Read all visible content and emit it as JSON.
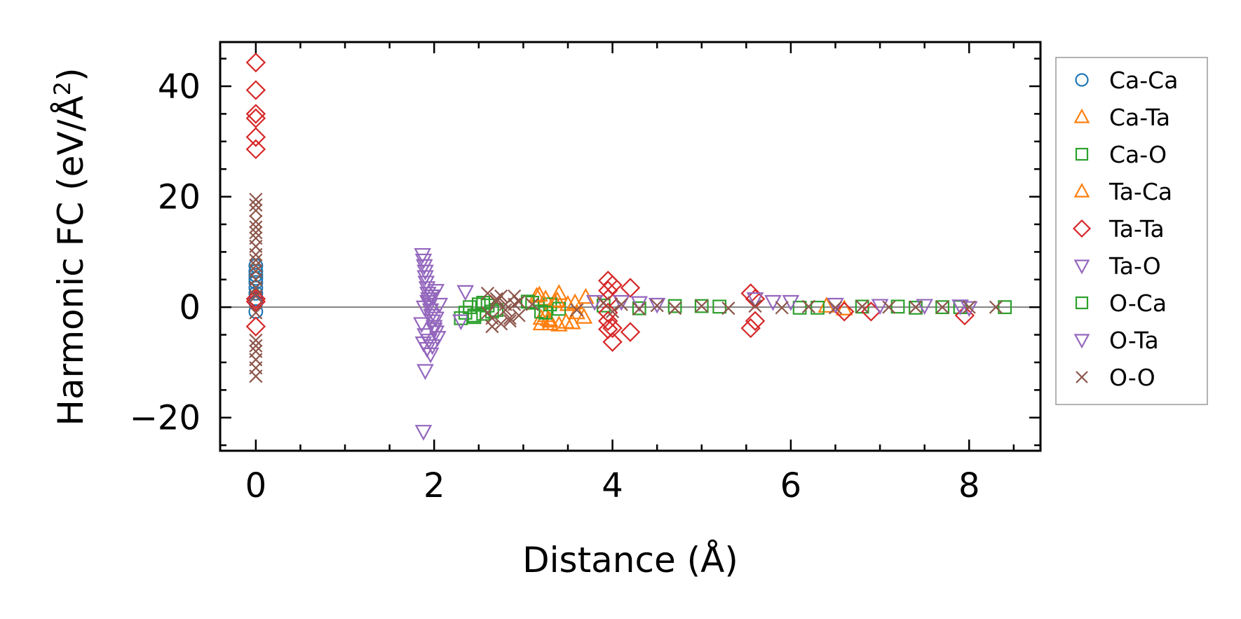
{
  "chart_data": {
    "type": "scatter",
    "title": "",
    "xlabel": "Distance (Å)",
    "ylabel_main": "Harmonic FC (eV/Å",
    "ylabel_sup": "2",
    "ylabel_close": ")",
    "xlim": [
      -0.4,
      8.8
    ],
    "ylim": [
      -26,
      48
    ],
    "xticks": [
      0,
      2,
      4,
      6,
      8
    ],
    "xtick_labels": [
      "0",
      "2",
      "4",
      "6",
      "8"
    ],
    "yticks": [
      -20,
      0,
      20,
      40
    ],
    "ytick_labels": [
      "−20",
      "0",
      "20",
      "40"
    ],
    "x_minor_step": 0.5,
    "y_minor_step": 5,
    "zero_line": true,
    "grid": false,
    "legend_position": "outside-right",
    "series": [
      {
        "name": "Ca-Ca",
        "marker": "circle",
        "color": "#1f77b4",
        "x": [
          0,
          0,
          0,
          0,
          0,
          0,
          0,
          0,
          0,
          0
        ],
        "y": [
          7.5,
          6.5,
          5.8,
          5.2,
          4.5,
          3.5,
          2.5,
          1.5,
          0.8,
          -0.8
        ]
      },
      {
        "name": "Ca-Ta",
        "marker": "triangle-up",
        "color": "#ff7f0e",
        "x": [
          3.15,
          3.2,
          3.25,
          3.3,
          3.35,
          3.4,
          3.5,
          3.6,
          3.2,
          3.3,
          3.4,
          3.55,
          3.7,
          3.25,
          6.4,
          6.6
        ],
        "y": [
          2,
          -3,
          1.5,
          -2.5,
          1,
          -3.2,
          0.5,
          -1,
          -2,
          -3,
          2.5,
          -2.8,
          1.8,
          -1.5,
          0.2,
          -0.3
        ]
      },
      {
        "name": "Ca-O",
        "marker": "square",
        "color": "#2ca02c",
        "x": [
          2.3,
          2.35,
          2.4,
          2.45,
          2.5,
          2.55,
          2.6,
          2.7,
          3.1,
          3.2,
          3.3,
          3.4,
          3.9,
          4.3,
          4.7,
          5.2,
          6.1,
          6.8,
          7.4,
          7.9,
          8.4
        ],
        "y": [
          -2,
          -1,
          0,
          -1.5,
          0.5,
          -1.2,
          0.3,
          -0.5,
          0.8,
          -0.8,
          0.5,
          -0.3,
          0.3,
          -0.2,
          0.2,
          0.1,
          -0.1,
          0.1,
          -0.1,
          0,
          0
        ]
      },
      {
        "name": "Ta-Ca",
        "marker": "triangle-up",
        "color": "#ff7f0e",
        "x": [
          3.18,
          3.28,
          3.38,
          3.48,
          3.58,
          3.68
        ],
        "y": [
          2.2,
          -2.2,
          1.2,
          -2.7,
          0.8,
          -1.8
        ]
      },
      {
        "name": "Ta-Ta",
        "marker": "diamond",
        "color": "#d62728",
        "x": [
          0,
          0,
          0,
          0,
          0,
          0,
          0,
          0,
          0,
          3.95,
          3.95,
          3.95,
          3.95,
          3.95,
          3.95,
          4.0,
          4.0,
          4.0,
          4.2,
          4.2,
          5.55,
          5.55,
          5.6,
          5.6,
          6.6,
          6.9,
          7.95
        ],
        "y": [
          44.3,
          39.3,
          35,
          34.2,
          30.8,
          28.6,
          1,
          -3.5,
          1.5,
          4.8,
          3,
          1.5,
          -1,
          -2.5,
          -4,
          -6.3,
          4,
          -3.8,
          3.5,
          -4.5,
          2.5,
          -3.8,
          1.5,
          -2.5,
          -0.8,
          -0.8,
          -1.5
        ]
      },
      {
        "name": "Ta-O",
        "marker": "triangle-down",
        "color": "#9467bd",
        "x": [
          1.87,
          1.88,
          1.89,
          1.9,
          1.9,
          1.91,
          1.92,
          1.93,
          1.94,
          1.95,
          1.96,
          1.97,
          1.98,
          2.0,
          2.02,
          2.04,
          1.88,
          1.92,
          1.96,
          2.0,
          1.9,
          1.94,
          1.98,
          2.02,
          2.06,
          2.35,
          2.3,
          3.8,
          4.1,
          4.3,
          4.5,
          5.6,
          5.8,
          6.0,
          6.5,
          7.0,
          7.5,
          7.9,
          8.0
        ],
        "y": [
          9.5,
          8.5,
          7.5,
          6.5,
          5.5,
          4.5,
          3.5,
          2.5,
          1.5,
          0.5,
          -0.5,
          -1.5,
          -2.5,
          -3.5,
          -4.5,
          -5.5,
          -6.5,
          -7.5,
          -8.5,
          -4,
          -11.5,
          1,
          2,
          3,
          0.5,
          2.8,
          -2.5,
          1,
          1,
          0.8,
          0.5,
          1.5,
          1,
          1,
          0.5,
          0.3,
          0.3,
          0.2,
          -0.1
        ]
      },
      {
        "name": "O-Ca",
        "marker": "square",
        "color": "#2ca02c",
        "x": [
          2.45,
          2.55,
          2.65,
          3.05,
          3.25,
          5.0,
          6.3,
          7.2,
          7.7
        ],
        "y": [
          -1.8,
          0.8,
          -0.8,
          1,
          -1,
          0.2,
          -0.1,
          0.1,
          0
        ]
      },
      {
        "name": "O-Ta",
        "marker": "triangle-down",
        "color": "#9467bd",
        "x": [
          1.86,
          1.9,
          1.94,
          1.98,
          2.02,
          1.89,
          1.93,
          1.97,
          1.88
        ],
        "y": [
          -3,
          -5,
          -6,
          -7,
          -2,
          0,
          1,
          2,
          -22.5
        ]
      },
      {
        "name": "O-O",
        "marker": "x",
        "color": "#8c564b",
        "x": [
          0,
          0,
          0,
          0,
          0,
          0,
          0,
          0,
          0,
          0,
          0,
          0,
          0,
          0,
          0,
          0,
          0,
          0,
          0,
          0,
          0,
          0,
          2.6,
          2.65,
          2.7,
          2.75,
          2.8,
          2.85,
          2.9,
          2.95,
          2.6,
          2.7,
          2.8,
          2.9,
          2.65,
          2.75,
          2.85,
          2.95,
          3.1,
          3.6,
          3.9,
          4.0,
          4.1,
          4.3,
          4.5,
          4.7,
          5.0,
          5.3,
          5.6,
          5.9,
          6.2,
          6.5,
          6.8,
          7.1,
          7.4,
          7.7,
          8.0,
          8.3
        ],
        "y": [
          19.5,
          18.5,
          17.5,
          15.5,
          14.5,
          13.5,
          12.5,
          11,
          9.5,
          8.5,
          7.5,
          6.5,
          5,
          3.5,
          2,
          -1,
          -6,
          -7,
          -8,
          -9.5,
          -11,
          -12.5,
          2.5,
          -2,
          1.5,
          -3,
          0.5,
          -2.5,
          2,
          -1.5,
          -1,
          1,
          -0.5,
          0.5,
          -3.5,
          2,
          -2,
          1,
          0.5,
          -0.5,
          0.8,
          -0.8,
          0.5,
          -0.3,
          0.3,
          -0.2,
          0.2,
          -0.2,
          0.2,
          -0.1,
          0.1,
          -0.1,
          0.1,
          0,
          0,
          0,
          0,
          0
        ]
      }
    ]
  }
}
